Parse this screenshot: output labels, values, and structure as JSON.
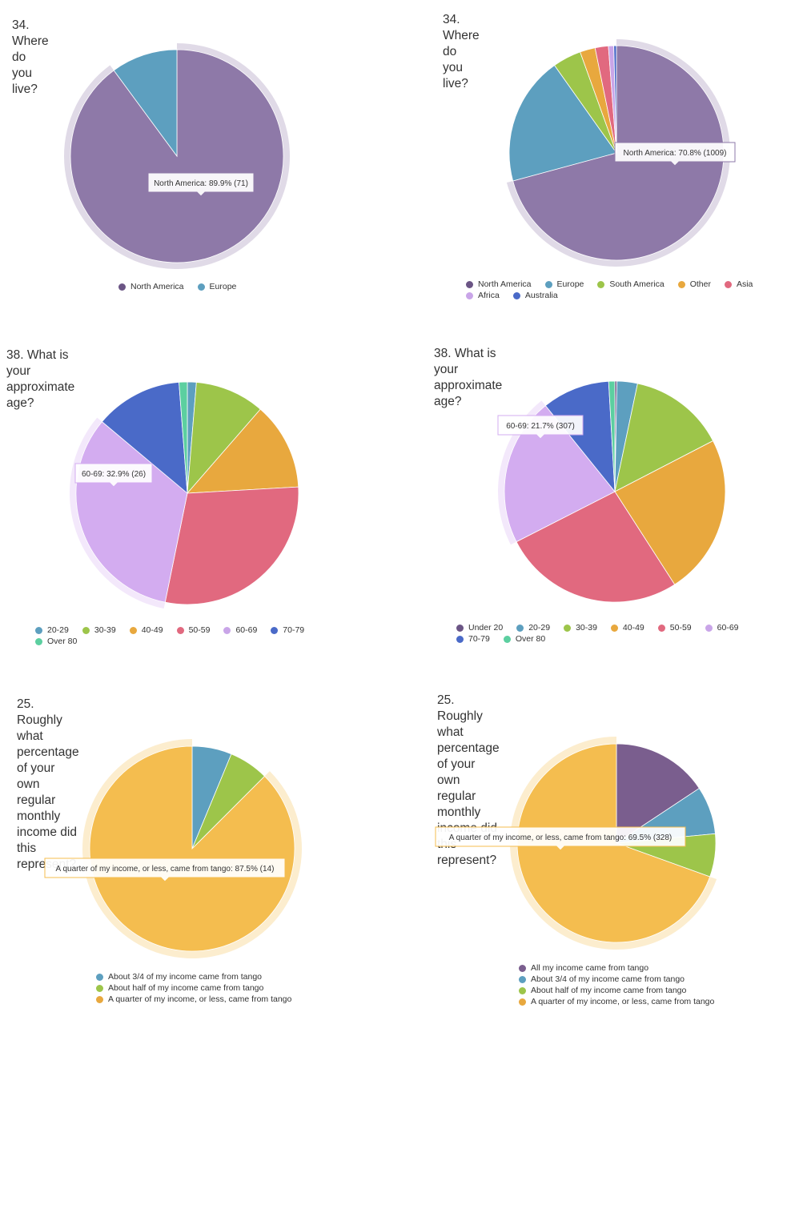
{
  "charts": [
    {
      "title_lines": [
        "34. Where do you live?"
      ],
      "chart_data": {
        "type": "pie",
        "title": "34. Where do you live?",
        "slices": [
          {
            "label": "North America",
            "value": 89.9,
            "count": 71,
            "color": "#8e79a8"
          },
          {
            "label": "Europe",
            "value": 10.1,
            "color": "#5d9fbf"
          }
        ],
        "highlighted": "North America",
        "tooltip": "North America: 89.9% (71)",
        "legend": [
          "North America",
          "Europe"
        ],
        "legend_colors": [
          "#6b5585",
          "#5d9fbf"
        ],
        "legend_placement": "bottom"
      }
    },
    {
      "title_lines": [
        "34. Where do you live?"
      ],
      "chart_data": {
        "type": "pie",
        "title": "34. Where do you live?",
        "slices": [
          {
            "label": "North America",
            "value": 70.8,
            "count": 1009,
            "color": "#8e79a8"
          },
          {
            "label": "Europe",
            "value": 19.4,
            "color": "#5d9fbf"
          },
          {
            "label": "South America",
            "value": 4.3,
            "color": "#9dc54a"
          },
          {
            "label": "Other",
            "value": 2.3,
            "color": "#e8a83e"
          },
          {
            "label": "Asia",
            "value": 2.0,
            "color": "#e1697f"
          },
          {
            "label": "Africa",
            "value": 0.8,
            "color": "#c9a5e8"
          },
          {
            "label": "Australia",
            "value": 0.4,
            "color": "#4a6ac8"
          }
        ],
        "highlighted": "North America",
        "tooltip": "North America: 70.8% (1009)",
        "legend": [
          "North America",
          "Europe",
          "South America",
          "Other",
          "Asia",
          "Africa",
          "Australia"
        ],
        "legend_colors": [
          "#6b5585",
          "#5d9fbf",
          "#9dc54a",
          "#e8a83e",
          "#e1697f",
          "#c9a5e8",
          "#4a6ac8"
        ],
        "legend_rows": [
          5,
          2
        ],
        "legend_placement": "bottom"
      }
    },
    {
      "title_lines": [
        "38. What is your approximate age?"
      ],
      "chart_data": {
        "type": "pie",
        "title": "38. What is your approximate age?",
        "slices": [
          {
            "label": "20-29",
            "value": 1.3,
            "color": "#5d9fbf"
          },
          {
            "label": "30-39",
            "value": 10.1,
            "color": "#9dc54a"
          },
          {
            "label": "40-49",
            "value": 12.7,
            "color": "#e8a83e"
          },
          {
            "label": "50-59",
            "value": 29.1,
            "color": "#e1697f"
          },
          {
            "label": "60-69",
            "value": 32.9,
            "count": 26,
            "color": "#d3acf0"
          },
          {
            "label": "70-79",
            "value": 12.7,
            "color": "#4a6ac8"
          },
          {
            "label": "Over 80",
            "value": 1.2,
            "color": "#5ccfa0"
          }
        ],
        "highlighted": "60-69",
        "tooltip": "60-69: 32.9% (26)",
        "legend": [
          "20-29",
          "30-39",
          "40-49",
          "50-59",
          "60-69",
          "70-79",
          "Over 80"
        ],
        "legend_colors": [
          "#5d9fbf",
          "#9dc54a",
          "#e8a83e",
          "#e1697f",
          "#c9a5e8",
          "#4a6ac8",
          "#5ccfa0"
        ],
        "legend_rows": [
          6,
          1
        ],
        "legend_placement": "bottom"
      }
    },
    {
      "title_lines": [
        "38. What is your approximate age?"
      ],
      "chart_data": {
        "type": "pie",
        "title": "38. What is your approximate age?",
        "slices": [
          {
            "label": "Under 20",
            "value": 0.3,
            "color": "#6b5585"
          },
          {
            "label": "20-29",
            "value": 3.0,
            "color": "#5d9fbf"
          },
          {
            "label": "30-39",
            "value": 14.1,
            "color": "#9dc54a"
          },
          {
            "label": "40-49",
            "value": 23.5,
            "color": "#e8a83e"
          },
          {
            "label": "50-59",
            "value": 26.6,
            "color": "#e1697f"
          },
          {
            "label": "60-69",
            "value": 21.7,
            "count": 307,
            "color": "#d3acf0"
          },
          {
            "label": "70-79",
            "value": 9.9,
            "color": "#4a6ac8"
          },
          {
            "label": "Over 80",
            "value": 0.9,
            "color": "#5ccfa0"
          }
        ],
        "highlighted": "60-69",
        "tooltip": "60-69: 21.7% (307)",
        "legend": [
          "Under 20",
          "20-29",
          "30-39",
          "40-49",
          "50-59",
          "60-69",
          "70-79",
          "Over 80"
        ],
        "legend_colors": [
          "#6b5585",
          "#5d9fbf",
          "#9dc54a",
          "#e8a83e",
          "#e1697f",
          "#c9a5e8",
          "#4a6ac8",
          "#5ccfa0"
        ],
        "legend_rows": [
          6,
          2
        ],
        "legend_placement": "bottom"
      }
    },
    {
      "title_lines": [
        "25. Roughly what percentage of your own regular monthly",
        "income did this represent?"
      ],
      "chart_data": {
        "type": "pie",
        "title": "25. Roughly what percentage of your own regular monthly income did this represent?",
        "slices": [
          {
            "label": "About 3/4 of my income came from tango",
            "value": 6.25,
            "color": "#5d9fbf"
          },
          {
            "label": "About half of my income came from tango",
            "value": 6.25,
            "color": "#9dc54a"
          },
          {
            "label": "A quarter of my income, or less, came from tango",
            "value": 87.5,
            "count": 14,
            "color": "#f4bd4f"
          }
        ],
        "highlighted": "A quarter of my income, or less, came from tango",
        "tooltip": "A quarter of my income, or less, came from tango: 87.5% (14)",
        "legend": [
          "About 3/4 of my income came from tango",
          "About half of my income came from tango",
          "A quarter of my income, or less, came from tango"
        ],
        "legend_colors": [
          "#5d9fbf",
          "#9dc54a",
          "#e8a83e"
        ],
        "legend_rows": [
          1,
          1,
          1
        ],
        "legend_placement": "bottom"
      }
    },
    {
      "title_lines": [
        "25. Roughly what percentage of your own regular monthly",
        "income did this represent?"
      ],
      "chart_data": {
        "type": "pie",
        "title": "25. Roughly what percentage of your own regular monthly income did this represent?",
        "slices": [
          {
            "label": "All my income came from tango",
            "value": 15.7,
            "color": "#7a5e8e"
          },
          {
            "label": "About 3/4 of my income came from tango",
            "value": 7.8,
            "color": "#5d9fbf"
          },
          {
            "label": "About half of my income came from tango",
            "value": 7.0,
            "color": "#9dc54a"
          },
          {
            "label": "A quarter of my income, or less, came from tango",
            "value": 69.5,
            "count": 328,
            "color": "#f4bd4f"
          }
        ],
        "highlighted": "A quarter of my income, or less, came from tango",
        "tooltip": "A quarter of my income, or less, came from tango: 69.5% (328)",
        "legend": [
          "All my income came from tango",
          "About 3/4 of my income came from tango",
          "About half of my income came from tango",
          "A quarter of my income, or less, came from tango"
        ],
        "legend_colors": [
          "#7a5e8e",
          "#5d9fbf",
          "#9dc54a",
          "#e8a83e"
        ],
        "legend_rows": [
          1,
          1,
          1,
          1
        ],
        "legend_placement": "bottom"
      }
    }
  ]
}
